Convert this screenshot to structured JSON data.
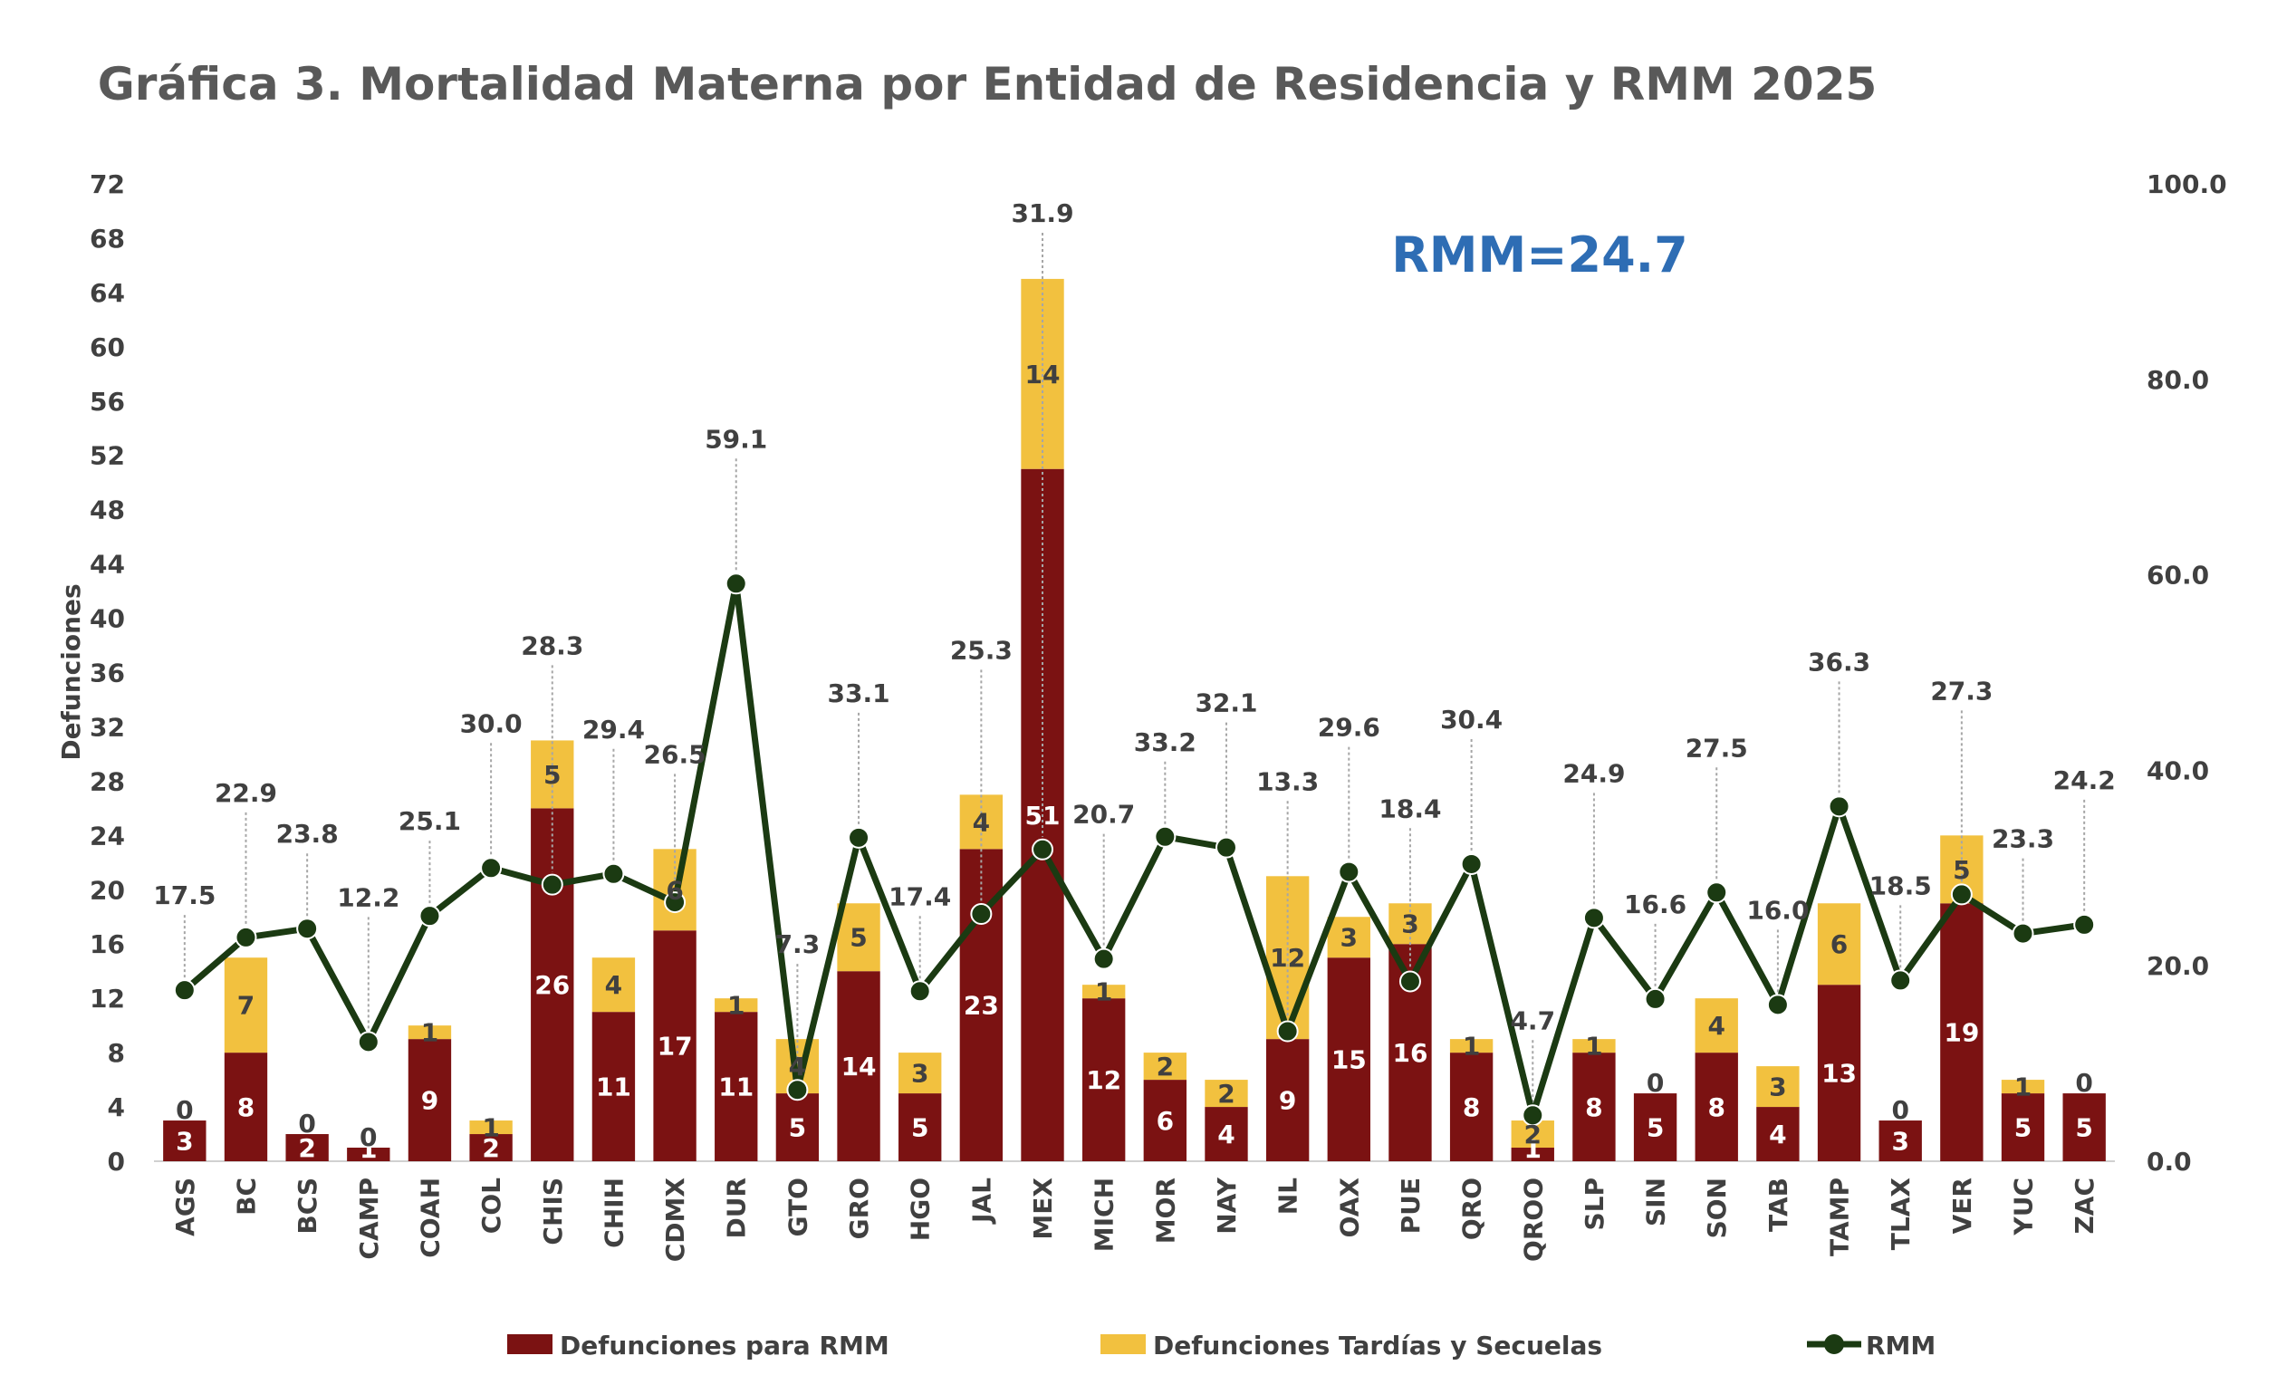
{
  "chart_data": {
    "type": "bar",
    "title": "Gráfica 3. Mortalidad Materna por Entidad de Residencia y RMM 2025",
    "annotation": "RMM=24.7",
    "ylabel": "Defunciones",
    "ylim": [
      0,
      72
    ],
    "y_ticks": [
      "0",
      "4",
      "8",
      "12",
      "16",
      "20",
      "24",
      "28",
      "32",
      "36",
      "40",
      "44",
      "48",
      "52",
      "56",
      "60",
      "64",
      "68",
      "72"
    ],
    "y2lim": [
      0,
      100
    ],
    "y2_ticks": [
      "0.0",
      "20.0",
      "40.0",
      "60.0",
      "80.0",
      "100.0"
    ],
    "categories": [
      "AGS",
      "BC",
      "BCS",
      "CAMP",
      "COAH",
      "COL",
      "CHIS",
      "CHIH",
      "CDMX",
      "DUR",
      "GTO",
      "GRO",
      "HGO",
      "JAL",
      "MEX",
      "MICH",
      "MOR",
      "NAY",
      "NL",
      "OAX",
      "PUE",
      "QRO",
      "QROO",
      "SLP",
      "SIN",
      "SON",
      "TAB",
      "TAMP",
      "TLAX",
      "VER",
      "YUC",
      "ZAC"
    ],
    "series": [
      {
        "name": "Defunciones para RMM",
        "type": "bar",
        "stack": "total",
        "color": "#7B1212",
        "values": [
          3,
          8,
          2,
          1,
          9,
          2,
          26,
          11,
          17,
          11,
          5,
          14,
          5,
          23,
          51,
          12,
          6,
          4,
          9,
          15,
          16,
          8,
          1,
          8,
          5,
          8,
          4,
          13,
          3,
          19,
          5,
          5
        ]
      },
      {
        "name": "Defunciones Tardías y Secuelas",
        "type": "bar",
        "stack": "total",
        "color": "#F2C13F",
        "values": [
          0,
          7,
          0,
          0,
          1,
          1,
          5,
          4,
          6,
          1,
          4,
          5,
          3,
          4,
          14,
          1,
          2,
          2,
          12,
          3,
          3,
          1,
          2,
          1,
          0,
          4,
          3,
          6,
          0,
          5,
          1,
          0
        ]
      },
      {
        "name": "RMM",
        "type": "line",
        "axis": "right",
        "color": "#1B3A12",
        "values": [
          17.5,
          22.9,
          23.8,
          12.2,
          25.1,
          30.0,
          28.3,
          29.4,
          26.5,
          59.1,
          7.3,
          33.1,
          17.4,
          25.3,
          31.9,
          20.7,
          33.2,
          32.1,
          13.3,
          29.6,
          18.4,
          30.4,
          4.7,
          24.9,
          16.6,
          27.5,
          16.0,
          36.3,
          18.5,
          27.3,
          23.3,
          24.2
        ]
      }
    ],
    "legend_position": "bottom"
  }
}
